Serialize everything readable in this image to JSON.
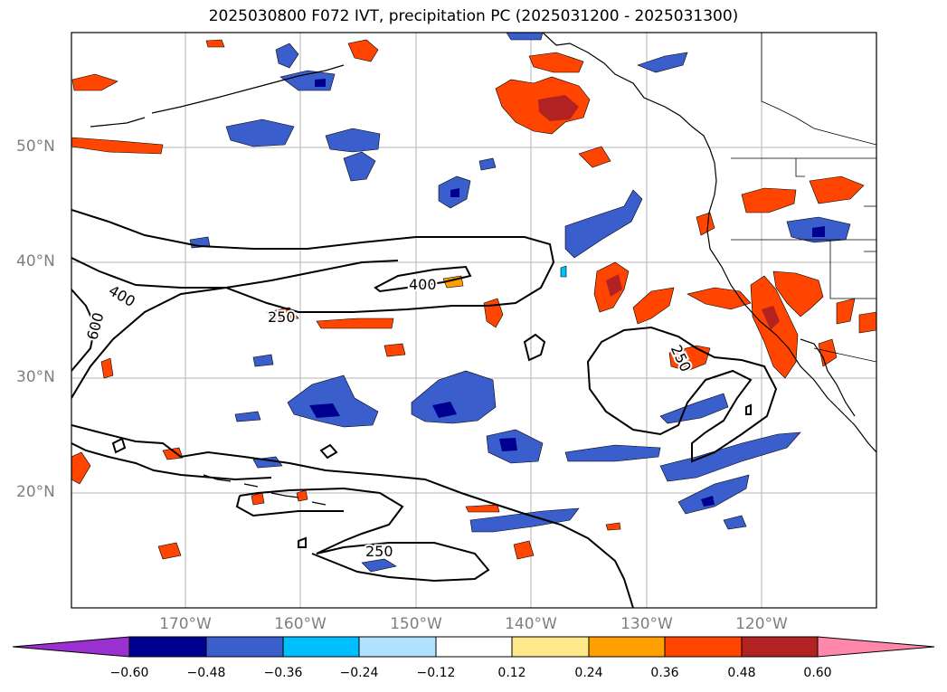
{
  "title": "2025030800 F072 IVT, precipitation PC (2025031200 - 2025031300)",
  "lat_labels": [
    "50°N",
    "40°N",
    "30°N",
    "20°N"
  ],
  "lon_labels": [
    "170°W",
    "160°W",
    "150°W",
    "140°W",
    "130°W",
    "120°W"
  ],
  "ivt_contour_labels": [
    "400",
    "400",
    "600",
    "250",
    "250",
    "250"
  ],
  "colorbar": {
    "ticks": [
      "−0.60",
      "−0.48",
      "−0.36",
      "−0.24",
      "−0.12",
      "0.12",
      "0.24",
      "0.36",
      "0.48",
      "0.60"
    ],
    "colors": [
      "#9b30d0",
      "#000090",
      "#3a5fcd",
      "#00bfff",
      "#b0e2ff",
      "#ffffff",
      "#ffe88a",
      "#ffa000",
      "#ff4500",
      "#b22222",
      "#ff88aa"
    ]
  },
  "precip_palette": {
    "neg_strong": "#000090",
    "neg_mid": "#3a5fcd",
    "neg_light": "#00bfff",
    "neg_faint": "#b0e2ff",
    "pos_faint": "#ffe88a",
    "pos_light": "#ffa000",
    "pos_mid": "#ff4500",
    "pos_strong": "#b22222",
    "pos_max": "#ff88aa"
  }
}
